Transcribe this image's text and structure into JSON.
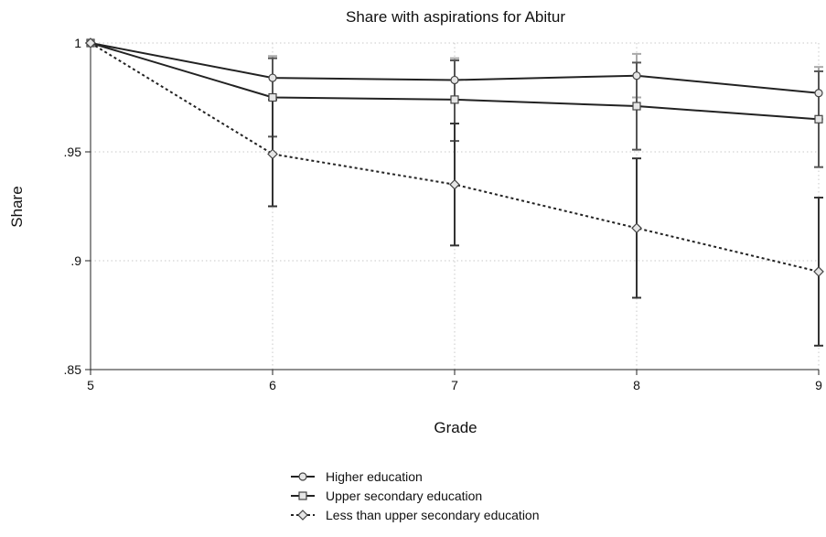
{
  "chart_data": {
    "type": "line",
    "title": "Share with aspirations for Abitur",
    "xlabel": "Grade",
    "ylabel": "Share",
    "x": [
      5,
      6,
      7,
      8,
      9
    ],
    "xlim": [
      5,
      9
    ],
    "ylim": [
      0.85,
      1.0
    ],
    "x_ticks": [
      5,
      6,
      7,
      8,
      9
    ],
    "x_tick_labels": [
      "5",
      "6",
      "7",
      "8",
      "9"
    ],
    "y_ticks": [
      0.85,
      0.9,
      0.95,
      1.0
    ],
    "y_tick_labels": [
      ".85",
      ".9",
      ".95",
      "1"
    ],
    "grid": true,
    "legend_position": "bottom",
    "series": [
      {
        "name": "Higher education",
        "marker": "circle",
        "line_style": "solid",
        "color": "#222222",
        "ci_color": "#aaaaaa",
        "values": [
          1.0,
          0.984,
          0.983,
          0.985,
          0.977
        ],
        "ci_low": [
          1.0,
          0.975,
          0.974,
          0.975,
          0.965
        ],
        "ci_high": [
          1.0,
          0.994,
          0.993,
          0.995,
          0.989
        ]
      },
      {
        "name": "Upper secondary education",
        "marker": "square",
        "line_style": "solid",
        "color": "#222222",
        "ci_color": "#555555",
        "values": [
          1.0,
          0.975,
          0.974,
          0.971,
          0.965
        ],
        "ci_low": [
          1.0,
          0.957,
          0.955,
          0.951,
          0.943
        ],
        "ci_high": [
          1.0,
          0.993,
          0.992,
          0.991,
          0.987
        ]
      },
      {
        "name": "Less than upper secondary education",
        "marker": "diamond",
        "line_style": "dashed",
        "color": "#222222",
        "ci_color": "#333333",
        "values": [
          1.0,
          0.949,
          0.935,
          0.915,
          0.895
        ],
        "ci_low": [
          1.0,
          0.925,
          0.907,
          0.883,
          0.861
        ],
        "ci_high": [
          1.0,
          0.974,
          0.963,
          0.947,
          0.929
        ]
      }
    ]
  }
}
